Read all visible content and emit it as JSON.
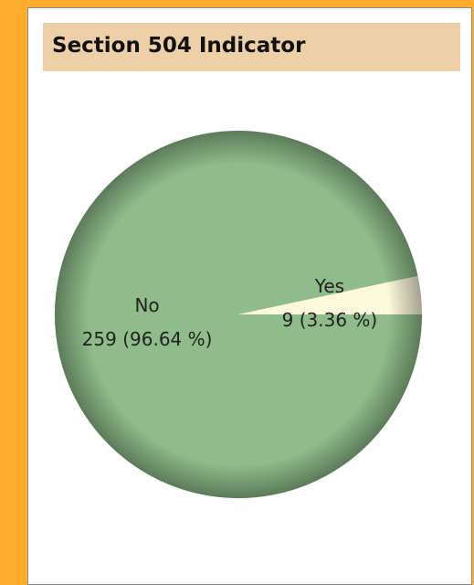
{
  "chart_data": {
    "type": "pie",
    "title": "Section 504 Indicator",
    "categories": [
      "No",
      "Yes"
    ],
    "values": [
      259,
      9
    ],
    "value_labels": [
      "259 (96.64 %)",
      "9 (3.36 %)"
    ],
    "colors": [
      "#8fbc8a",
      "#fdf9dc"
    ]
  }
}
